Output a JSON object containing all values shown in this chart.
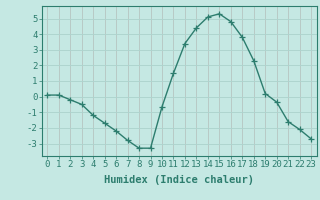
{
  "x": [
    0,
    1,
    2,
    3,
    4,
    5,
    6,
    7,
    8,
    9,
    10,
    11,
    12,
    13,
    14,
    15,
    16,
    17,
    18,
    19,
    20,
    21,
    22,
    23
  ],
  "y": [
    0.1,
    0.1,
    -0.2,
    -0.5,
    -1.2,
    -1.7,
    -2.2,
    -2.8,
    -3.3,
    -3.3,
    -0.65,
    1.5,
    3.4,
    4.4,
    5.1,
    5.3,
    4.8,
    3.8,
    2.3,
    0.2,
    -0.35,
    -1.6,
    -2.1,
    -2.7
  ],
  "line_color": "#2d7d6e",
  "marker": "+",
  "marker_size": 4,
  "bg_color": "#c5e8e3",
  "grid_color": "#aed4ce",
  "xlabel": "Humidex (Indice chaleur)",
  "xlim": [
    -0.5,
    23.5
  ],
  "ylim": [
    -3.8,
    5.8
  ],
  "yticks": [
    -3,
    -2,
    -1,
    0,
    1,
    2,
    3,
    4,
    5
  ],
  "xticks": [
    0,
    1,
    2,
    3,
    4,
    5,
    6,
    7,
    8,
    9,
    10,
    11,
    12,
    13,
    14,
    15,
    16,
    17,
    18,
    19,
    20,
    21,
    22,
    23
  ],
  "line_width": 1.0,
  "xlabel_fontsize": 7.5,
  "tick_fontsize": 6.5,
  "spine_color": "#2d7d6e"
}
